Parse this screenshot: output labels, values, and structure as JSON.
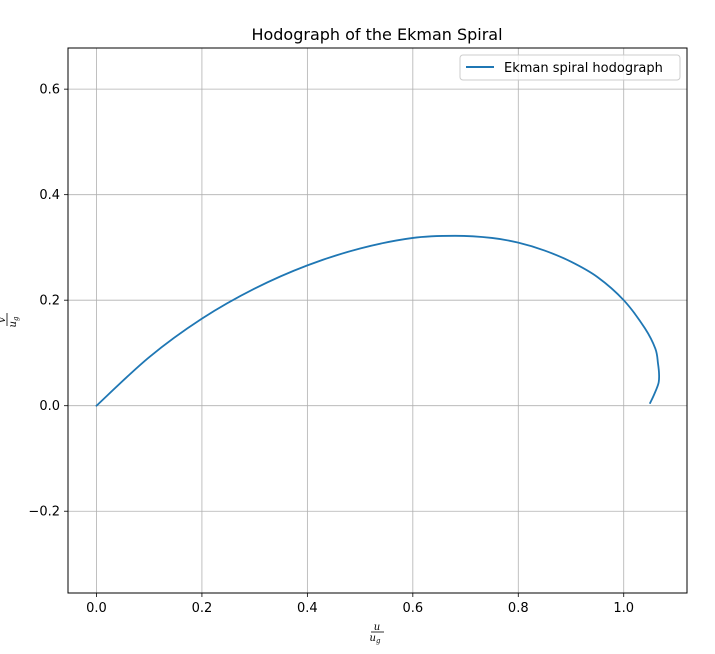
{
  "chart_data": {
    "type": "line",
    "title": "Hodograph of the Ekman Spiral",
    "xlabel": {
      "numerator": "u",
      "denominator": "u",
      "denominator_sub": "g"
    },
    "ylabel": {
      "numerator": "v",
      "denominator": "u",
      "denominator_sub": "g"
    },
    "xlim": [
      -0.054,
      1.12
    ],
    "ylim": [
      -0.355,
      0.678
    ],
    "xticks": [
      0.0,
      0.2,
      0.4,
      0.6,
      0.8,
      1.0
    ],
    "xtick_labels": [
      "0.0",
      "0.2",
      "0.4",
      "0.6",
      "0.8",
      "1.0"
    ],
    "yticks": [
      -0.2,
      0.0,
      0.2,
      0.4,
      0.6
    ],
    "ytick_labels": [
      "−0.2",
      "0.0",
      "0.2",
      "0.4",
      "0.6"
    ],
    "grid": true,
    "legend_position": "top-right",
    "series": [
      {
        "name": "Ekman spiral hodograph",
        "color": "#1f77b4",
        "x": [
          0.0,
          0.1,
          0.2,
          0.3,
          0.4,
          0.5,
          0.6,
          0.68,
          0.75,
          0.8,
          0.85,
          0.9,
          0.95,
          1.0,
          1.04,
          1.06,
          1.065,
          1.067,
          1.066,
          1.058,
          1.05
        ],
        "y": [
          0.0,
          0.092,
          0.165,
          0.222,
          0.266,
          0.298,
          0.318,
          0.322,
          0.318,
          0.309,
          0.294,
          0.273,
          0.244,
          0.2,
          0.147,
          0.108,
          0.08,
          0.06,
          0.043,
          0.022,
          0.005
        ]
      }
    ]
  }
}
